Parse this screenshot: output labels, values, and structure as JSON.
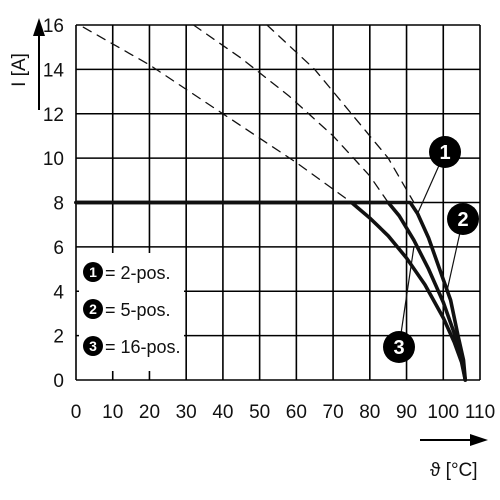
{
  "chart_data": {
    "type": "line",
    "title": "",
    "xlabel": "ϑ [°C]",
    "ylabel": "I [A]",
    "xlim": [
      0,
      110
    ],
    "ylim": [
      0,
      16
    ],
    "xticks": [
      "0",
      "10",
      "20",
      "30",
      "40",
      "50",
      "60",
      "70",
      "80",
      "90",
      "100",
      "110"
    ],
    "yticks": [
      "0",
      "2",
      "4",
      "6",
      "8",
      "10",
      "12",
      "14",
      "16"
    ],
    "grid": true,
    "legend_position": "bottom-left",
    "legend": [
      {
        "id": "1",
        "text": "= 2-pos."
      },
      {
        "id": "2",
        "text": "= 5-pos."
      },
      {
        "id": "3",
        "text": "= 16-pos."
      }
    ],
    "series": [
      {
        "id": "1",
        "style": "solid",
        "x": [
          0,
          91,
          93,
          96,
          99,
          102,
          104,
          105.5,
          106
        ],
        "y": [
          8,
          8,
          7.5,
          6.4,
          5.0,
          3.6,
          2.0,
          0.9,
          0
        ]
      },
      {
        "id": "2",
        "style": "solid",
        "x": [
          0,
          85,
          88,
          92,
          96,
          100,
          103,
          105,
          106
        ],
        "y": [
          8,
          8,
          7.4,
          6.3,
          5.0,
          3.5,
          2.1,
          1.0,
          0
        ]
      },
      {
        "id": "3",
        "style": "solid",
        "x": [
          0,
          75,
          80,
          85,
          90,
          95,
          100,
          103,
          105,
          106
        ],
        "y": [
          8,
          8,
          7.3,
          6.5,
          5.5,
          4.3,
          2.8,
          1.7,
          0.8,
          0
        ]
      },
      {
        "id": "1",
        "style": "dashed",
        "x": [
          52,
          65,
          75,
          85,
          92
        ],
        "y": [
          16,
          14,
          12,
          10,
          8
        ]
      },
      {
        "id": "2",
        "style": "dashed",
        "x": [
          32,
          45,
          58,
          70,
          80,
          85
        ],
        "y": [
          16,
          14.5,
          12.8,
          11,
          9.2,
          8
        ]
      },
      {
        "id": "3",
        "style": "dashed",
        "x": [
          2,
          20,
          40,
          60,
          75
        ],
        "y": [
          15.9,
          14.2,
          12,
          9.8,
          8
        ]
      }
    ],
    "callouts": [
      {
        "id": "1",
        "at_x": 93,
        "at_y": 7.5
      },
      {
        "id": "2",
        "at_x": 101,
        "at_y": 4.0
      },
      {
        "id": "3",
        "at_x": 92,
        "at_y": 6.0
      }
    ]
  }
}
